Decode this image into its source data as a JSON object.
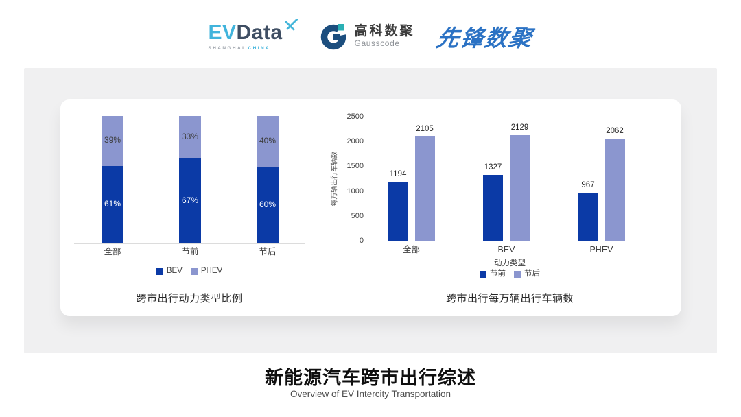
{
  "header": {
    "evdata_logo": {
      "ev": "EV",
      "data": "Data",
      "sub_left": "SHANGHAI",
      "sub_right": "CHINA"
    },
    "gausscode_logo": {
      "cn": "高科数聚",
      "en": "Gausscode"
    },
    "pioneer_logo": {
      "text": "先锋数聚"
    }
  },
  "colors": {
    "series_dark_blue": "#0b3aa6",
    "series_light_blue": "#8b96cf",
    "panel_bg": "#f0f0f1",
    "card_bg": "#ffffff",
    "axis_line": "#dcdcdc",
    "tick_text": "#404040",
    "evdata_blue": "#41b4dc",
    "evdata_slate": "#3f4e63",
    "gauss_navy": "#1c4e7e",
    "gauss_teal": "#2ab0b4",
    "pioneer_blue": "#2b72c4"
  },
  "chart_data": [
    {
      "type": "bar",
      "variant": "stacked-100",
      "title": "跨市出行动力类型比例",
      "categories": [
        "全部",
        "节前",
        "节后"
      ],
      "series": [
        {
          "name": "BEV",
          "color": "#0b3aa6",
          "values": [
            61,
            67,
            60
          ]
        },
        {
          "name": "PHEV",
          "color": "#8b96cf",
          "values": [
            39,
            33,
            40
          ]
        }
      ],
      "value_suffix": "%",
      "ylim": [
        0,
        100
      ],
      "grid": false,
      "legend_position": "bottom"
    },
    {
      "type": "bar",
      "variant": "grouped",
      "title": "跨市出行每万辆出行车辆数",
      "categories": [
        "全部",
        "BEV",
        "PHEV"
      ],
      "xlabel": "动力类型",
      "ylabel": "每万辆出行车辆数",
      "ylim": [
        0,
        2500
      ],
      "yticks": [
        0,
        500,
        1000,
        1500,
        2000,
        2500
      ],
      "series": [
        {
          "name": "节前",
          "color": "#0b3aa6",
          "values": [
            1194,
            1327,
            967
          ]
        },
        {
          "name": "节后",
          "color": "#8b96cf",
          "values": [
            2105,
            2129,
            2062
          ]
        }
      ],
      "grid": false,
      "legend_position": "bottom"
    }
  ],
  "footer": {
    "title": "新能源汽车跨市出行综述",
    "subtitle": "Overview of EV Intercity Transportation"
  }
}
